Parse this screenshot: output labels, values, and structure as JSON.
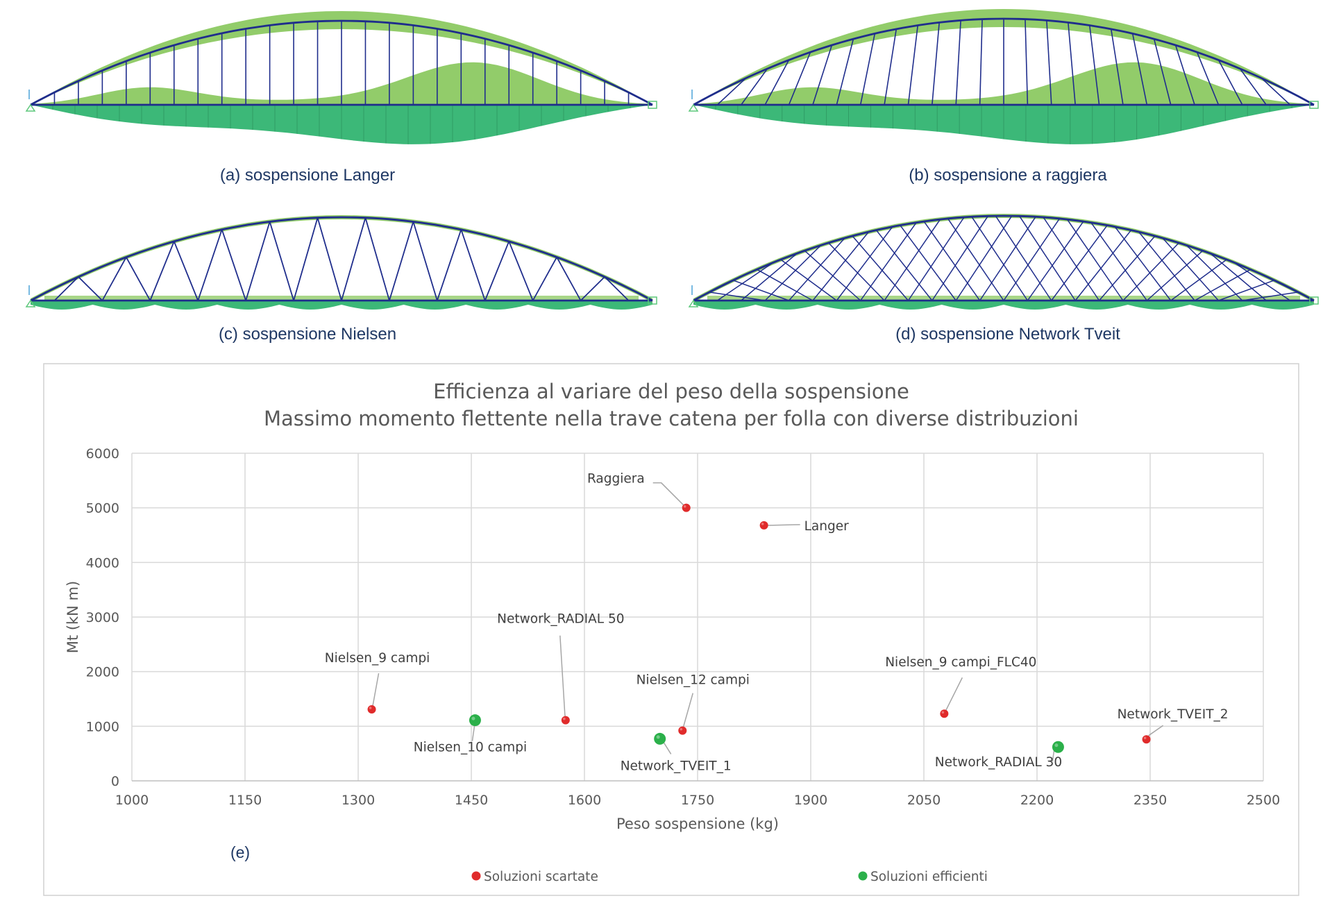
{
  "diagrams": [
    {
      "key": "langer",
      "caption": "(a) sospensione Langer"
    },
    {
      "key": "raggiera",
      "caption": "(b) sospensione a raggiera"
    },
    {
      "key": "nielsen",
      "caption": "(c) sospensione Nielsen"
    },
    {
      "key": "network",
      "caption": "(d) sospensione Network Tveit"
    }
  ],
  "colors": {
    "structure": "#1f2d8c",
    "diagram_dark": "#3cb878",
    "diagram_light": "#92cc6a",
    "discarded": "#e02b2b",
    "efficient": "#2bb04a",
    "grid": "#d9d9d9"
  },
  "panel_label": "(e)",
  "chart_data": {
    "type": "scatter",
    "title": "Efficienza al variare del peso della sospensione",
    "subtitle": "Massimo momento flettente nella trave catena per folla con diverse distribuzioni",
    "xlabel": "Peso sospensione (kg)",
    "ylabel": "Mt (kN m)",
    "xlim": [
      1000,
      2500
    ],
    "ylim": [
      0,
      6000
    ],
    "xticks": [
      1000,
      1150,
      1300,
      1450,
      1600,
      1750,
      1900,
      2050,
      2200,
      2350,
      2500
    ],
    "yticks": [
      0,
      1000,
      2000,
      3000,
      4000,
      5000,
      6000
    ],
    "grid": true,
    "legend_position": "bottom",
    "series": [
      {
        "name": "Soluzioni scartate",
        "color": "#e02b2b",
        "points": [
          {
            "label": "Raggiera",
            "x": 1735,
            "y": 5000
          },
          {
            "label": "Langer",
            "x": 1838,
            "y": 4680
          },
          {
            "label": "Nielsen_9 campi",
            "x": 1318,
            "y": 1310
          },
          {
            "label": "Network_RADIAL 50",
            "x": 1575,
            "y": 1110
          },
          {
            "label": "Nielsen_12 campi",
            "x": 1730,
            "y": 920
          },
          {
            "label": "Nielsen_9 campi_FLC40",
            "x": 2077,
            "y": 1230
          },
          {
            "label": "Network_TVEIT_2",
            "x": 2345,
            "y": 760
          }
        ]
      },
      {
        "name": "Soluzioni efficienti",
        "color": "#2bb04a",
        "points": [
          {
            "label": "Nielsen_10 campi",
            "x": 1455,
            "y": 1110
          },
          {
            "label": "Network_TVEIT_1",
            "x": 1700,
            "y": 770
          },
          {
            "label": "Network_RADIAL 30",
            "x": 2228,
            "y": 620
          }
        ]
      }
    ]
  }
}
